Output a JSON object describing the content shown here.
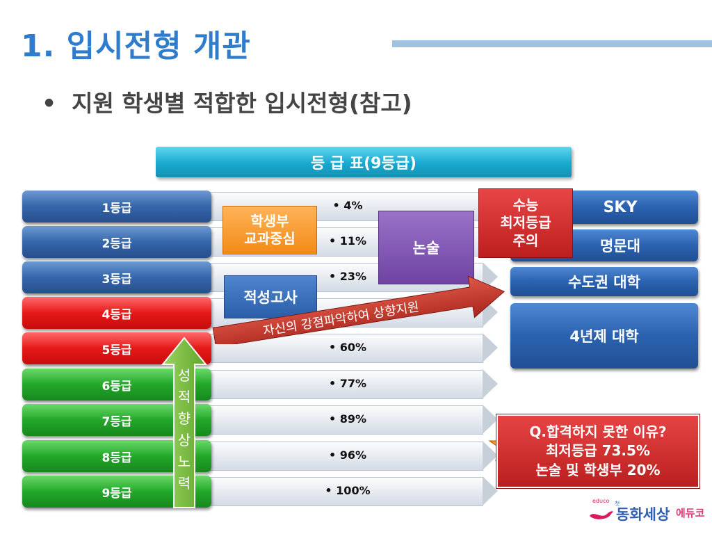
{
  "header": {
    "title": "1. 입시전형 개관",
    "subtitle": "지원 학생별 적합한 입시전형(참고)",
    "bullet": "•"
  },
  "banner": {
    "label": "등 급 표(9등급)"
  },
  "grades": [
    {
      "label": "1등급",
      "color": "blue",
      "percent": "• 4%"
    },
    {
      "label": "2등급",
      "color": "blue",
      "percent": "• 11%"
    },
    {
      "label": "3등급",
      "color": "blue",
      "percent": "• 23%"
    },
    {
      "label": "4등급",
      "color": "red",
      "percent": ""
    },
    {
      "label": "5등급",
      "color": "red",
      "percent": "• 60%"
    },
    {
      "label": "6등급",
      "color": "green",
      "percent": "• 77%"
    },
    {
      "label": "7등급",
      "color": "green",
      "percent": "• 89%"
    },
    {
      "label": "8등급",
      "color": "green",
      "percent": "• 96%"
    },
    {
      "label": "9등급",
      "color": "green",
      "percent": "• 100%"
    }
  ],
  "admission_boxes": {
    "student_record": "학생부\n교과중심",
    "essay": "논술",
    "aptitude": "적성고사",
    "csat_minimum": "수능\n최저등급\n주의"
  },
  "strength_arrow": "자신의 강점파악하여 상향지원",
  "grade_up_arrow": "성적향상노력",
  "universities": [
    "SKY",
    "명문대",
    "수도권 대학",
    "4년제 대학"
  ],
  "reason_box": {
    "line1": "Q.합격하지 못한 이유?",
    "line2": "최저등급 73.5%",
    "line3": "논술 및 학생부 20%"
  },
  "logo": {
    "small": "educo",
    "tag": "첫",
    "name": "동화세상",
    "suffix": "에듀코"
  },
  "colors": {
    "title": "#2f7bcc",
    "banner": "#19a8cf",
    "grade_blue": "#3566ab",
    "grade_red": "#e61818",
    "grade_green": "#22a82a",
    "orange": "#f28a16",
    "purple": "#6e43a3",
    "csat_red": "#bd1e1e",
    "strength_arrow": "#c0392b",
    "up_arrow": "#7cc242"
  }
}
